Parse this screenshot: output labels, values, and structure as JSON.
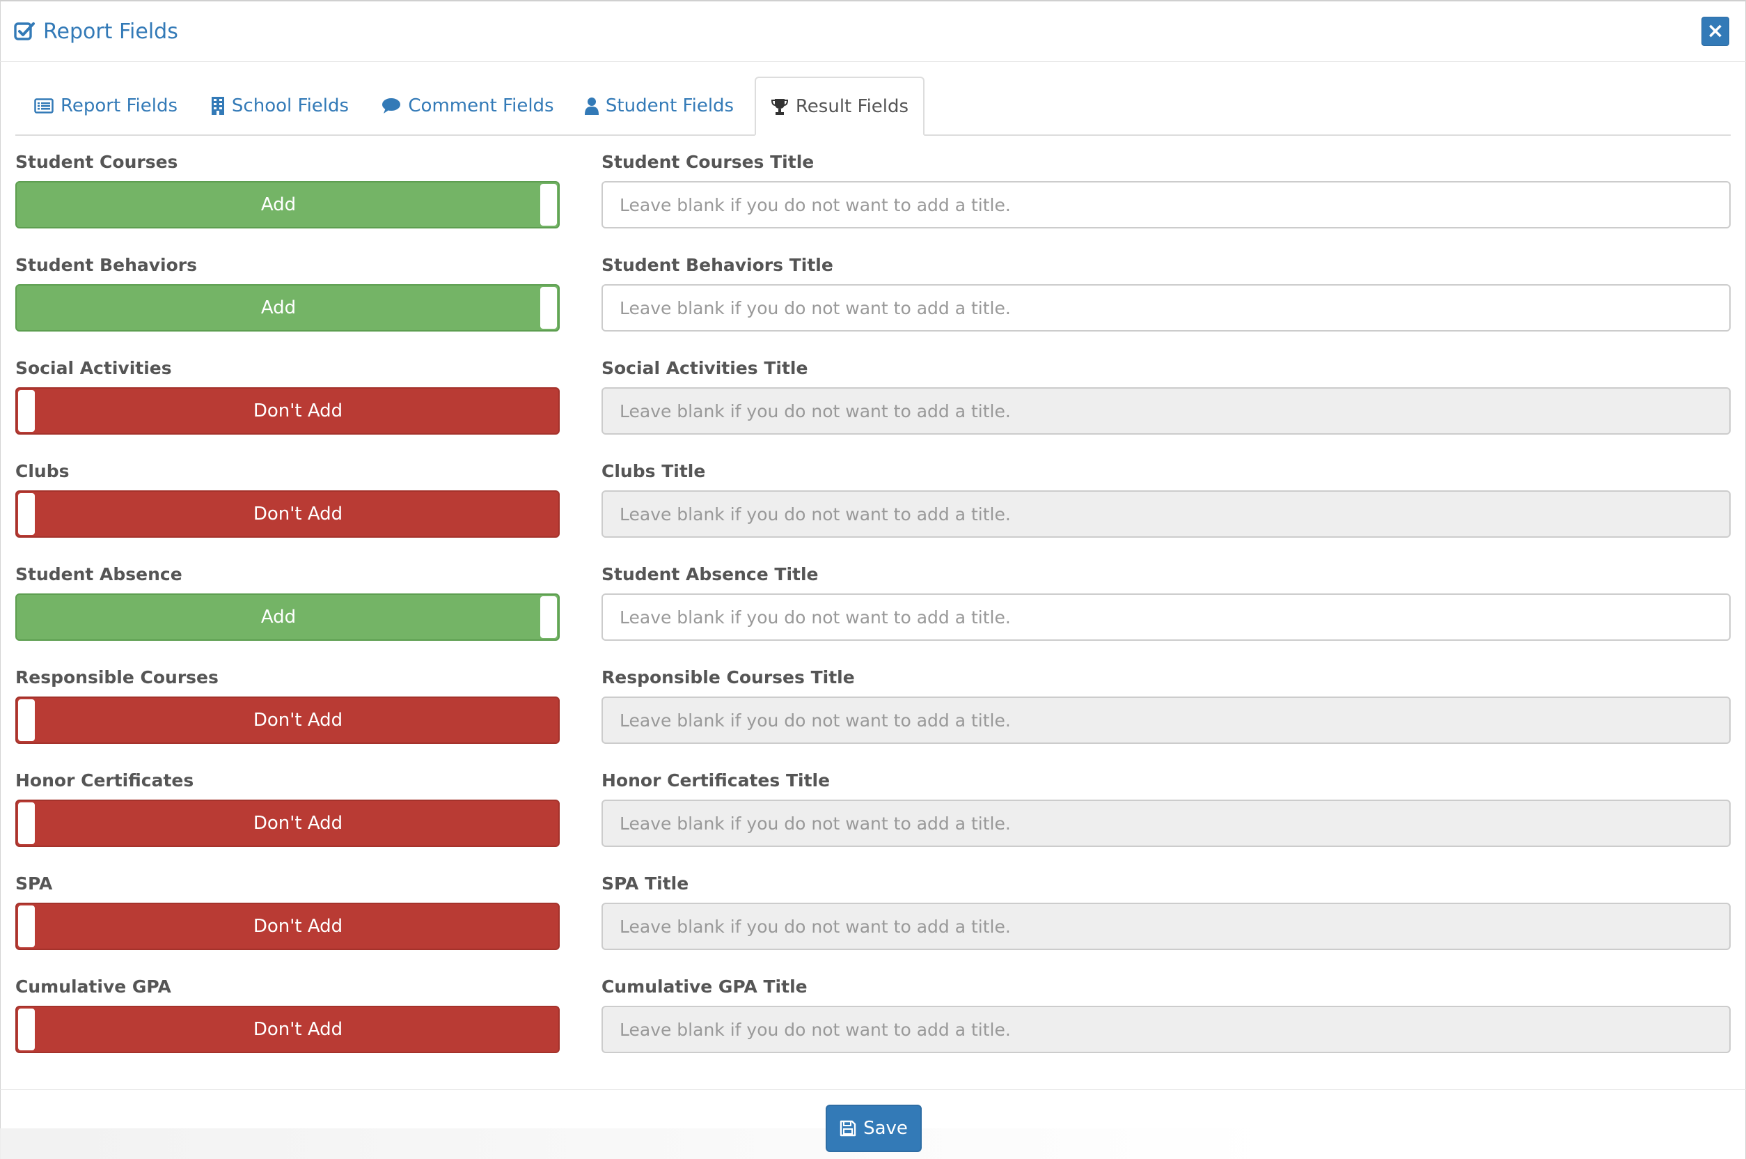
{
  "modal": {
    "title": "Report Fields",
    "close_label": "×"
  },
  "tabs": [
    {
      "label": "Report Fields",
      "icon": "list-alt-icon"
    },
    {
      "label": "School Fields",
      "icon": "building-icon"
    },
    {
      "label": "Comment Fields",
      "icon": "comment-icon"
    },
    {
      "label": "Student Fields",
      "icon": "user-icon"
    },
    {
      "label": "Result Fields",
      "icon": "trophy-icon",
      "active": true
    }
  ],
  "fields": [
    {
      "label": "Student Courses",
      "toggle": "Add",
      "title_label": "Student Courses Title",
      "placeholder": "Leave blank if you do not want to add a title."
    },
    {
      "label": "Student Behaviors",
      "toggle": "Add",
      "title_label": "Student Behaviors Title",
      "placeholder": "Leave blank if you do not want to add a title."
    },
    {
      "label": "Social Activities",
      "toggle": "Don't Add",
      "title_label": "Social Activities Title",
      "placeholder": "Leave blank if you do not want to add a title."
    },
    {
      "label": "Clubs",
      "toggle": "Don't Add",
      "title_label": "Clubs Title",
      "placeholder": "Leave blank if you do not want to add a title."
    },
    {
      "label": "Student Absence",
      "toggle": "Add",
      "title_label": "Student Absence Title",
      "placeholder": "Leave blank if you do not want to add a title."
    },
    {
      "label": "Responsible Courses",
      "toggle": "Don't Add",
      "title_label": "Responsible Courses Title",
      "placeholder": "Leave blank if you do not want to add a title."
    },
    {
      "label": "Honor Certificates",
      "toggle": "Don't Add",
      "title_label": "Honor Certificates Title",
      "placeholder": "Leave blank if you do not want to add a title."
    },
    {
      "label": "SPA",
      "toggle": "Don't Add",
      "title_label": "SPA Title",
      "placeholder": "Leave blank if you do not want to add a title."
    },
    {
      "label": "Cumulative GPA",
      "toggle": "Don't Add",
      "title_label": "Cumulative GPA Title",
      "placeholder": "Leave blank if you do not want to add a title."
    }
  ],
  "footer": {
    "save_label": "Save"
  },
  "colors": {
    "primary": "#337ab7",
    "toggle_on": "#74b466",
    "toggle_off": "#b93b34",
    "disabled_input": "#eeeeee"
  }
}
